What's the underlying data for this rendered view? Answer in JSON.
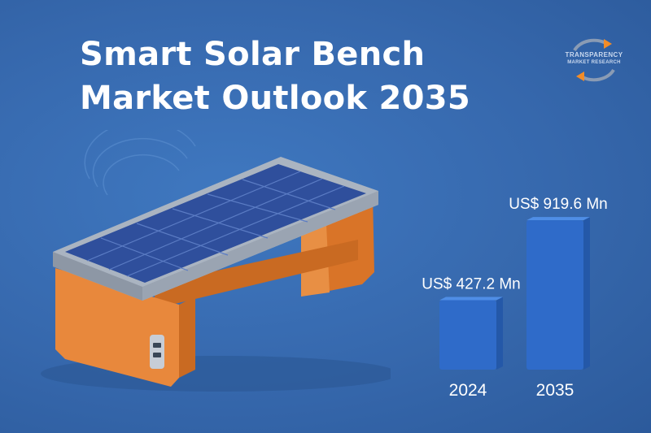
{
  "title": {
    "line1": "Smart Solar Bench",
    "line2": "Market Outlook 2035"
  },
  "logo": {
    "line1": "TRANSPARENCY",
    "line2": "MARKET RESEARCH"
  },
  "chart_data": {
    "type": "bar",
    "categories": [
      "2024",
      "2035"
    ],
    "values": [
      427.2,
      919.6
    ],
    "value_labels": [
      "US$ 427.2 Mn",
      "US$ 919.6 Mn"
    ],
    "unit": "US$ Mn",
    "colors": {
      "bar_front": "#2f6bc9",
      "bar_top": "#4f8ee6",
      "bar_side": "#2458a8",
      "label": "#ffffff"
    }
  },
  "illustration": {
    "description_icon": "solar-bench-illustration",
    "bench_color": "#e8883c",
    "panel_color": "#2f4f9c",
    "frame_color": "#b9c3cf"
  }
}
